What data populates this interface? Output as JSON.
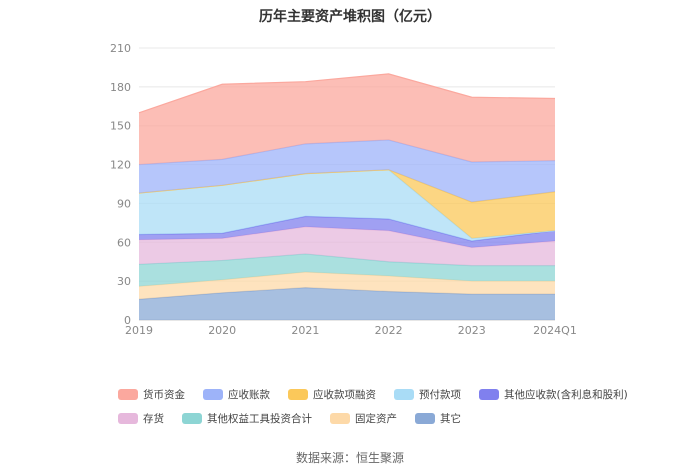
{
  "chart_data": {
    "type": "area",
    "stacked": true,
    "title": "历年主要资产堆积图（亿元）",
    "categories": [
      "2019",
      "2020",
      "2021",
      "2022",
      "2023",
      "2024Q1"
    ],
    "yticks": [
      0,
      30,
      60,
      90,
      120,
      150,
      180,
      210
    ],
    "ylim": [
      0,
      210
    ],
    "grid": true,
    "legend_position": "bottom",
    "series": [
      {
        "name": "其它",
        "color": "#8aa9d6",
        "values": [
          16,
          21,
          25,
          22,
          20,
          20
        ]
      },
      {
        "name": "固定资产",
        "color": "#fdd9a8",
        "values": [
          10,
          10,
          12,
          12,
          10,
          10
        ]
      },
      {
        "name": "其他权益工具投资合计",
        "color": "#8dd5d4",
        "values": [
          17,
          15,
          14,
          11,
          12,
          12
        ]
      },
      {
        "name": "存货",
        "color": "#e6b8dc",
        "values": [
          19,
          17,
          21,
          24,
          14,
          19
        ]
      },
      {
        "name": "其他应收款(含利息和股利)",
        "color": "#8080ee",
        "values": [
          4,
          4,
          8,
          9,
          5,
          8
        ]
      },
      {
        "name": "预付款项",
        "color": "#a9dcf6",
        "values": [
          32,
          37,
          33,
          38,
          2,
          0
        ]
      },
      {
        "name": "应收款项融资",
        "color": "#fbc85a",
        "values": [
          0,
          0,
          0,
          0,
          28,
          30
        ]
      },
      {
        "name": "应收账款",
        "color": "#9db3f9",
        "values": [
          22,
          20,
          23,
          23,
          31,
          24
        ]
      },
      {
        "name": "货币资金",
        "color": "#fba89e",
        "values": [
          40,
          58,
          48,
          51,
          50,
          48
        ]
      }
    ]
  },
  "legend_rows": [
    [
      {
        "label": "货币资金",
        "color": "#fba89e"
      },
      {
        "label": "应收账款",
        "color": "#9db3f9"
      },
      {
        "label": "应收款项融资",
        "color": "#fbc85a"
      },
      {
        "label": "预付款项",
        "color": "#a9dcf6"
      },
      {
        "label": "其他应收款(含利息和股利)",
        "color": "#8080ee"
      }
    ],
    [
      {
        "label": "存货",
        "color": "#e6b8dc"
      },
      {
        "label": "其他权益工具投资合计",
        "color": "#8dd5d4"
      },
      {
        "label": "固定资产",
        "color": "#fdd9a8"
      },
      {
        "label": "其它",
        "color": "#8aa9d6"
      }
    ]
  ],
  "source": "数据来源：恒生聚源"
}
